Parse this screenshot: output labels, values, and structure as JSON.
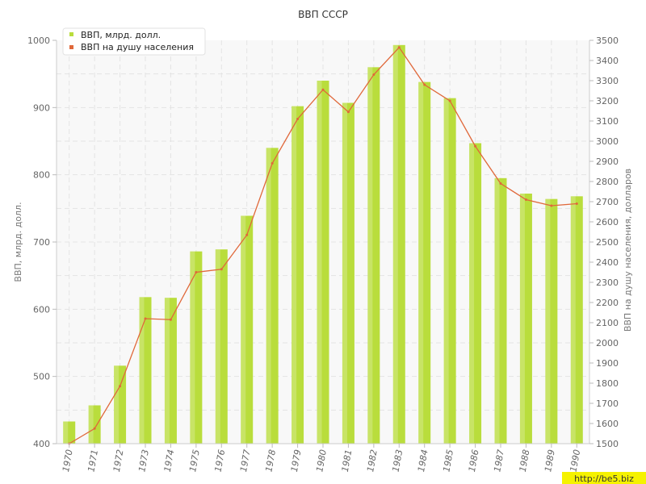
{
  "chart_data": {
    "type": "bar",
    "title": "ВВП СССР",
    "categories": [
      "1970",
      "1971",
      "1972",
      "1973",
      "1974",
      "1975",
      "1976",
      "1977",
      "1978",
      "1979",
      "1980",
      "1981",
      "1982",
      "1983",
      "1984",
      "1985",
      "1986",
      "1987",
      "1988",
      "1989",
      "1990"
    ],
    "series": [
      {
        "name": "ВВП, млрд. долл.",
        "type": "bar",
        "axis": "left",
        "color": "#b9dd3c",
        "values": [
          433,
          457,
          516,
          618,
          617,
          686,
          689,
          739,
          840,
          902,
          940,
          907,
          960,
          993,
          938,
          914,
          847,
          795,
          772,
          764,
          768
        ]
      },
      {
        "name": "ВВП на душу населения",
        "type": "line",
        "axis": "right",
        "color": "#e0683a",
        "values": [
          1500,
          1575,
          1785,
          2120,
          2115,
          2350,
          2365,
          2535,
          2890,
          3110,
          3255,
          3145,
          3330,
          3465,
          3280,
          3200,
          2975,
          2790,
          2710,
          2680,
          2690
        ]
      }
    ],
    "ylabel_left": "ВВП, млрд. долл.",
    "ylabel_right": "ВВП на душу населения, долларов",
    "ylim_left": [
      400,
      1000
    ],
    "yticks_left": [
      400,
      500,
      600,
      700,
      800,
      900,
      1000
    ],
    "ylim_right": [
      1500,
      3500
    ],
    "yticks_right": [
      1500,
      1600,
      1700,
      1800,
      1900,
      2000,
      2100,
      2200,
      2300,
      2400,
      2500,
      2600,
      2700,
      2800,
      2900,
      3000,
      3100,
      3200,
      3300,
      3400,
      3500
    ],
    "grid": true,
    "legend_position": "top-left"
  },
  "watermark": "http://be5.biz"
}
